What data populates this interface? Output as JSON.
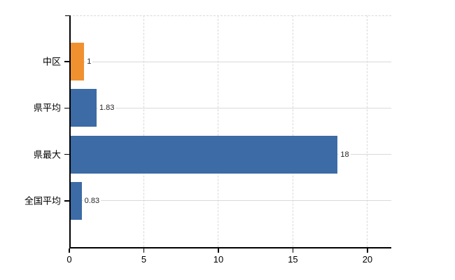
{
  "chart": {
    "background_color": "#ffffff",
    "axis_color": "#000000",
    "grid_color": "#d9d9d9",
    "category_label_color": "#000000",
    "value_label_color": "#262626"
  },
  "chart_data": {
    "type": "bar",
    "orientation": "horizontal",
    "title": "",
    "xlabel": "",
    "ylabel": "",
    "categories": [
      "中区",
      "県平均",
      "県最大",
      "全国平均"
    ],
    "values": [
      1,
      1.83,
      18,
      0.83
    ],
    "value_labels": [
      "1",
      "1.83",
      "18",
      "0.83"
    ],
    "bar_colors": [
      "#F0912F",
      "#3C6BA5",
      "#3C6BA5",
      "#3C6BA5"
    ],
    "xlim": [
      0,
      21.6
    ],
    "xticks": [
      0,
      5,
      10,
      15,
      20
    ],
    "xtick_labels": [
      "0",
      "5",
      "10",
      "15",
      "20"
    ],
    "grid": true,
    "legend": false
  }
}
